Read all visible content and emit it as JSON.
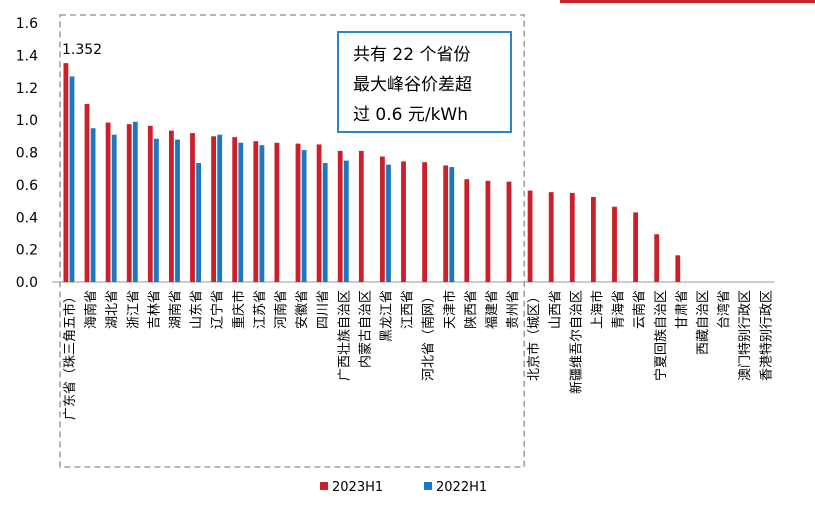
{
  "colors": {
    "series_2023": "#cc1f2c",
    "series_2022": "#1f78bf",
    "annotation_border": "#2c86c6",
    "dashed_box": "#8c8c8c",
    "top_accent": "#cc1f2c"
  },
  "annotation": {
    "line1": "共有 22 个省份",
    "line2": "最大峰谷价差超",
    "line3": "过 0.6 元/kWh"
  },
  "chart_data": {
    "type": "bar",
    "title": "",
    "xlabel": "",
    "ylabel": "",
    "ylim": [
      0,
      1.6
    ],
    "yticks": [
      "0.0",
      "0.2",
      "0.4",
      "0.6",
      "0.8",
      "1.0",
      "1.2",
      "1.4",
      "1.6"
    ],
    "categories": [
      "广东省（珠三角五市）",
      "海南省",
      "湖北省",
      "浙江省",
      "吉林省",
      "湖南省",
      "山东省",
      "辽宁省",
      "重庆市",
      "江苏省",
      "河南省",
      "安徽省",
      "四川省",
      "广西壮族自治区",
      "内蒙古自治区",
      "黑龙江省",
      "江西省",
      "河北省（南网）",
      "天津市",
      "陕西省",
      "福建省",
      "贵州省",
      "北京市（城区）",
      "山西省",
      "新疆维吾尔自治区",
      "上海市",
      "青海省",
      "云南省",
      "宁夏回族自治区",
      "甘肃省",
      "西藏自治区",
      "台湾省",
      "澳门特别行政区",
      "香港特别行政区"
    ],
    "series": [
      {
        "name": "2023H1",
        "values": [
          1.352,
          1.1,
          0.985,
          0.975,
          0.965,
          0.935,
          0.92,
          0.9,
          0.895,
          0.87,
          0.86,
          0.855,
          0.85,
          0.81,
          0.81,
          0.775,
          0.745,
          0.74,
          0.72,
          0.635,
          0.625,
          0.62,
          0.565,
          0.555,
          0.55,
          0.525,
          0.465,
          0.43,
          0.295,
          0.165,
          0,
          0,
          0,
          0
        ]
      },
      {
        "name": "2022H1",
        "values": [
          1.27,
          0.95,
          0.91,
          0.99,
          0.885,
          0.88,
          0.735,
          0.91,
          0.86,
          0.845,
          null,
          0.815,
          0.735,
          0.75,
          null,
          0.725,
          null,
          null,
          0.71,
          null,
          null,
          null,
          null,
          null,
          null,
          null,
          null,
          null,
          null,
          null,
          null,
          null,
          null,
          null
        ]
      }
    ],
    "data_labels": [
      {
        "category": "广东省（珠三角五市）",
        "series": "2023H1",
        "text": "1.352"
      }
    ],
    "highlight_box": {
      "from": "广东省（珠三角五市）",
      "to": "贵州省"
    },
    "legend": {
      "position": "bottom-center",
      "entries": [
        "2023H1",
        "2022H1"
      ]
    },
    "grid": false
  }
}
